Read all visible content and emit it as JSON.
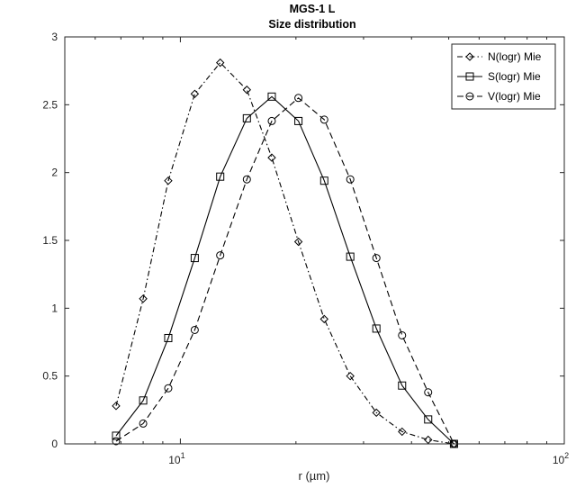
{
  "chart_data": {
    "type": "line",
    "title": "MGS-1 L",
    "subtitle": "Size distribution",
    "xlabel": "r (µm)",
    "ylabel": "",
    "xscale": "log",
    "xlim": [
      5,
      100
    ],
    "ylim": [
      0,
      3
    ],
    "yticks": [
      "0",
      "0.5",
      "1",
      "1.5",
      "2",
      "2.5",
      "3"
    ],
    "xticks": [
      {
        "base": "10",
        "exp": "1",
        "value": 10
      },
      {
        "base": "10",
        "exp": "2",
        "value": 100
      }
    ],
    "legend_position": "top-right",
    "grid": false,
    "series": [
      {
        "name": "N(logr) Mie",
        "marker": "diamond",
        "line": "dash-dot",
        "x": [
          6.8,
          8.0,
          9.3,
          10.9,
          12.7,
          14.9,
          17.3,
          20.3,
          23.7,
          27.7,
          32.4,
          37.8,
          44.2,
          51.6
        ],
        "y": [
          0.28,
          1.07,
          1.94,
          2.58,
          2.81,
          2.61,
          2.11,
          1.49,
          0.92,
          0.5,
          0.23,
          0.09,
          0.03,
          0.0
        ]
      },
      {
        "name": "S(logr) Mie",
        "marker": "square",
        "line": "solid",
        "x": [
          6.8,
          8.0,
          9.3,
          10.9,
          12.7,
          14.9,
          17.3,
          20.3,
          23.7,
          27.7,
          32.4,
          37.8,
          44.2,
          51.6
        ],
        "y": [
          0.06,
          0.32,
          0.78,
          1.37,
          1.97,
          2.4,
          2.56,
          2.38,
          1.94,
          1.38,
          0.85,
          0.43,
          0.18,
          0.0
        ]
      },
      {
        "name": "V(logr) Mie",
        "marker": "circle",
        "line": "dash",
        "x": [
          6.8,
          8.0,
          9.3,
          10.9,
          12.7,
          14.9,
          17.3,
          20.3,
          23.7,
          27.7,
          32.4,
          37.8,
          44.2,
          51.6
        ],
        "y": [
          0.02,
          0.15,
          0.41,
          0.84,
          1.39,
          1.95,
          2.38,
          2.55,
          2.39,
          1.95,
          1.37,
          0.8,
          0.38,
          0.0
        ]
      }
    ]
  },
  "colors": {
    "axes": "#262626",
    "series": "#000000",
    "background": "#ffffff"
  }
}
